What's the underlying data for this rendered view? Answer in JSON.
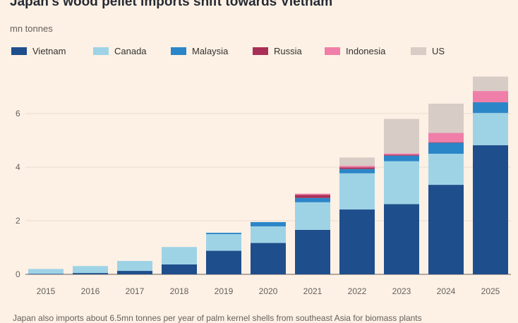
{
  "chart_data": {
    "type": "bar",
    "stacked": true,
    "title": "Japan's wood pellet imports shift towards Vietnam",
    "subtitle": "mn tonnes",
    "categories": [
      "2015",
      "2016",
      "2017",
      "2018",
      "2019",
      "2020",
      "2021",
      "2022",
      "2023",
      "2024",
      "2025"
    ],
    "series": [
      {
        "name": "Vietnam",
        "color": "#1f4e8c",
        "values": [
          0.02,
          0.05,
          0.13,
          0.37,
          0.88,
          1.17,
          1.66,
          2.42,
          2.62,
          3.34,
          4.82
        ]
      },
      {
        "name": "Canada",
        "color": "#9ed3e6",
        "values": [
          0.18,
          0.26,
          0.37,
          0.65,
          0.62,
          0.62,
          1.03,
          1.35,
          1.6,
          1.16,
          1.2
        ]
      },
      {
        "name": "Malaysia",
        "color": "#2b86c8",
        "values": [
          0.0,
          0.0,
          0.0,
          0.0,
          0.05,
          0.16,
          0.16,
          0.16,
          0.21,
          0.41,
          0.4
        ]
      },
      {
        "name": "Russia",
        "color": "#a83057",
        "values": [
          0.0,
          0.0,
          0.0,
          0.0,
          0.0,
          0.0,
          0.11,
          0.06,
          0.03,
          0.02,
          0.0
        ]
      },
      {
        "name": "Indonesia",
        "color": "#ef7fa8",
        "values": [
          0.0,
          0.0,
          0.0,
          0.0,
          0.0,
          0.0,
          0.05,
          0.06,
          0.05,
          0.35,
          0.42
        ]
      },
      {
        "name": "US",
        "color": "#d8ccc6",
        "values": [
          0.0,
          0.0,
          0.0,
          0.0,
          0.0,
          0.0,
          0.0,
          0.31,
          1.29,
          1.09,
          0.54
        ]
      }
    ],
    "yticks": [
      0,
      2,
      4,
      6
    ],
    "ylim": [
      0,
      7.4
    ],
    "grid": true,
    "legend_position": "top"
  },
  "footnote": "Japan also imports about 6.5mn tonnes per year of palm kernel shells from southeast Asia for biomass plants"
}
